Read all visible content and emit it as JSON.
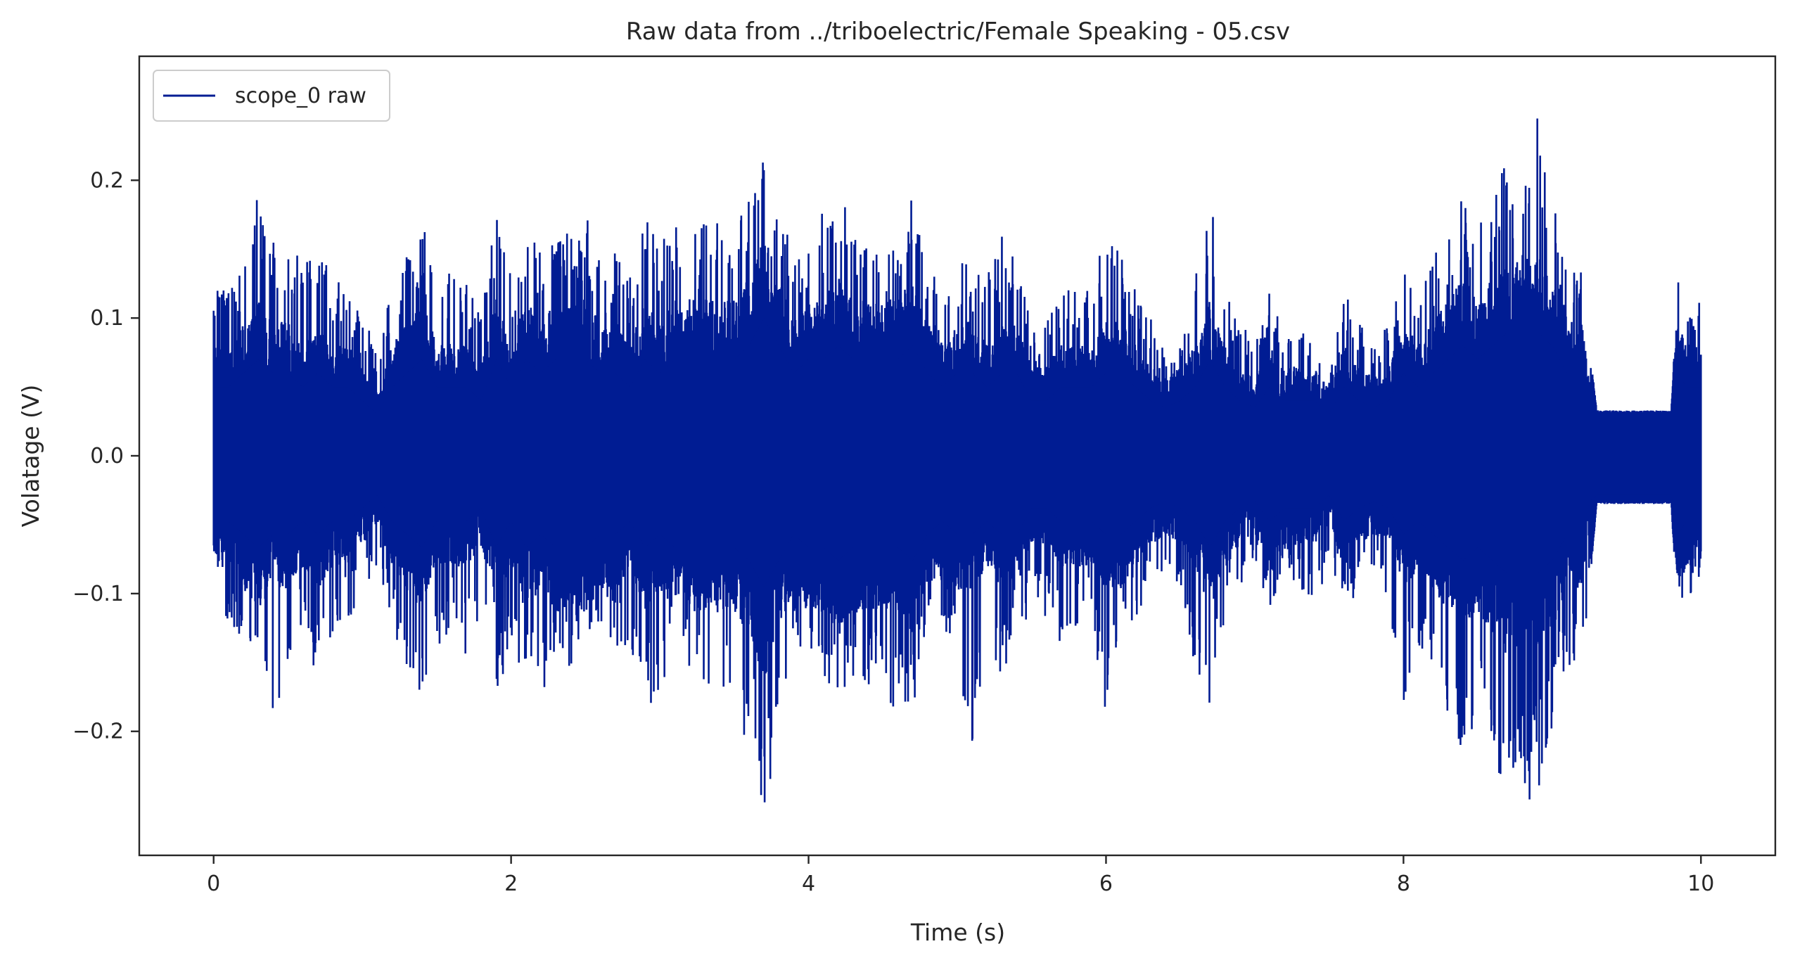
{
  "chart_data": {
    "type": "line",
    "title": "Raw data from ../triboelectric/Female Speaking - 05.csv",
    "xlabel": "Time (s)",
    "ylabel": "Volatage (V)",
    "xlim": [
      -0.5,
      10.5
    ],
    "ylim": [
      -0.29,
      0.29
    ],
    "xticks": [
      0,
      2,
      4,
      6,
      8,
      10
    ],
    "xtick_labels": [
      "0",
      "2",
      "4",
      "6",
      "8",
      "10"
    ],
    "yticks": [
      0.2,
      0.1,
      0.0,
      -0.1,
      -0.2
    ],
    "ytick_labels": [
      "0.2",
      "0.1",
      "0.0",
      "−0.1",
      "−0.2"
    ],
    "grid": false,
    "legend": {
      "position": "top-left"
    },
    "series": [
      {
        "name": "scope_0 raw",
        "color": "#001c93",
        "x_range": [
          0,
          10
        ],
        "envelope": {
          "t": [
            0.0,
            0.1,
            0.2,
            0.3,
            0.4,
            0.5,
            0.6,
            0.7,
            0.8,
            0.9,
            1.0,
            1.1,
            1.2,
            1.3,
            1.4,
            1.5,
            1.6,
            1.7,
            1.8,
            1.9,
            2.0,
            2.1,
            2.2,
            2.3,
            2.4,
            2.5,
            2.6,
            2.7,
            2.8,
            2.9,
            3.0,
            3.1,
            3.2,
            3.3,
            3.4,
            3.5,
            3.6,
            3.7,
            3.8,
            3.9,
            4.0,
            4.1,
            4.2,
            4.3,
            4.4,
            4.5,
            4.6,
            4.7,
            4.8,
            4.9,
            5.0,
            5.1,
            5.2,
            5.3,
            5.4,
            5.5,
            5.6,
            5.7,
            5.8,
            5.9,
            6.0,
            6.1,
            6.2,
            6.3,
            6.4,
            6.5,
            6.6,
            6.7,
            6.8,
            6.9,
            7.0,
            7.1,
            7.2,
            7.3,
            7.4,
            7.5,
            7.6,
            7.7,
            7.8,
            7.9,
            8.0,
            8.1,
            8.2,
            8.3,
            8.4,
            8.5,
            8.6,
            8.7,
            8.8,
            8.9,
            9.0,
            9.1,
            9.2,
            9.25,
            9.3,
            9.8,
            9.85,
            9.9,
            10.0
          ],
          "max": [
            0.12,
            0.13,
            0.15,
            0.19,
            0.16,
            0.16,
            0.14,
            0.15,
            0.13,
            0.12,
            0.1,
            0.08,
            0.12,
            0.15,
            0.17,
            0.13,
            0.14,
            0.13,
            0.1,
            0.18,
            0.13,
            0.17,
            0.15,
            0.18,
            0.16,
            0.18,
            0.14,
            0.15,
            0.13,
            0.18,
            0.15,
            0.18,
            0.16,
            0.17,
            0.17,
            0.18,
            0.2,
            0.26,
            0.2,
            0.14,
            0.17,
            0.18,
            0.2,
            0.16,
            0.15,
            0.15,
            0.15,
            0.19,
            0.14,
            0.12,
            0.14,
            0.14,
            0.13,
            0.16,
            0.16,
            0.09,
            0.1,
            0.13,
            0.12,
            0.13,
            0.16,
            0.15,
            0.12,
            0.1,
            0.08,
            0.09,
            0.14,
            0.19,
            0.13,
            0.1,
            0.08,
            0.12,
            0.09,
            0.09,
            0.1,
            0.06,
            0.12,
            0.1,
            0.08,
            0.1,
            0.15,
            0.13,
            0.15,
            0.17,
            0.2,
            0.17,
            0.18,
            0.23,
            0.2,
            0.27,
            0.2,
            0.13,
            0.14,
            0.08,
            0.033,
            0.033,
            0.14,
            0.1,
            0.12
          ],
          "min": [
            -0.1,
            -0.12,
            -0.14,
            -0.17,
            -0.2,
            -0.15,
            -0.12,
            -0.17,
            -0.13,
            -0.12,
            -0.1,
            -0.08,
            -0.12,
            -0.19,
            -0.17,
            -0.16,
            -0.12,
            -0.15,
            -0.11,
            -0.2,
            -0.13,
            -0.17,
            -0.18,
            -0.14,
            -0.16,
            -0.14,
            -0.12,
            -0.14,
            -0.16,
            -0.19,
            -0.18,
            -0.16,
            -0.16,
            -0.17,
            -0.17,
            -0.21,
            -0.2,
            -0.26,
            -0.21,
            -0.14,
            -0.15,
            -0.16,
            -0.18,
            -0.17,
            -0.17,
            -0.16,
            -0.2,
            -0.19,
            -0.12,
            -0.12,
            -0.15,
            -0.22,
            -0.14,
            -0.16,
            -0.15,
            -0.1,
            -0.12,
            -0.14,
            -0.13,
            -0.12,
            -0.2,
            -0.13,
            -0.12,
            -0.1,
            -0.1,
            -0.1,
            -0.16,
            -0.2,
            -0.12,
            -0.1,
            -0.08,
            -0.12,
            -0.08,
            -0.1,
            -0.12,
            -0.07,
            -0.12,
            -0.1,
            -0.08,
            -0.12,
            -0.18,
            -0.14,
            -0.16,
            -0.2,
            -0.24,
            -0.2,
            -0.22,
            -0.26,
            -0.26,
            -0.25,
            -0.2,
            -0.15,
            -0.17,
            -0.1,
            -0.035,
            -0.035,
            -0.13,
            -0.1,
            -0.1
          ],
          "core": [
            0.05,
            0.05,
            0.06,
            0.07,
            0.06,
            0.06,
            0.05,
            0.06,
            0.05,
            0.05,
            0.04,
            0.03,
            0.05,
            0.06,
            0.07,
            0.05,
            0.05,
            0.05,
            0.04,
            0.07,
            0.05,
            0.07,
            0.06,
            0.07,
            0.07,
            0.07,
            0.06,
            0.06,
            0.05,
            0.07,
            0.06,
            0.07,
            0.07,
            0.07,
            0.07,
            0.07,
            0.08,
            0.1,
            0.08,
            0.06,
            0.07,
            0.07,
            0.08,
            0.07,
            0.07,
            0.07,
            0.07,
            0.08,
            0.06,
            0.05,
            0.06,
            0.06,
            0.05,
            0.06,
            0.06,
            0.04,
            0.04,
            0.05,
            0.05,
            0.05,
            0.06,
            0.06,
            0.05,
            0.04,
            0.035,
            0.04,
            0.05,
            0.07,
            0.05,
            0.04,
            0.035,
            0.05,
            0.04,
            0.04,
            0.04,
            0.03,
            0.05,
            0.04,
            0.035,
            0.04,
            0.06,
            0.05,
            0.06,
            0.07,
            0.08,
            0.07,
            0.08,
            0.09,
            0.09,
            0.09,
            0.08,
            0.06,
            0.06,
            0.035,
            0.03,
            0.03,
            0.06,
            0.05,
            0.05
          ]
        }
      }
    ]
  }
}
